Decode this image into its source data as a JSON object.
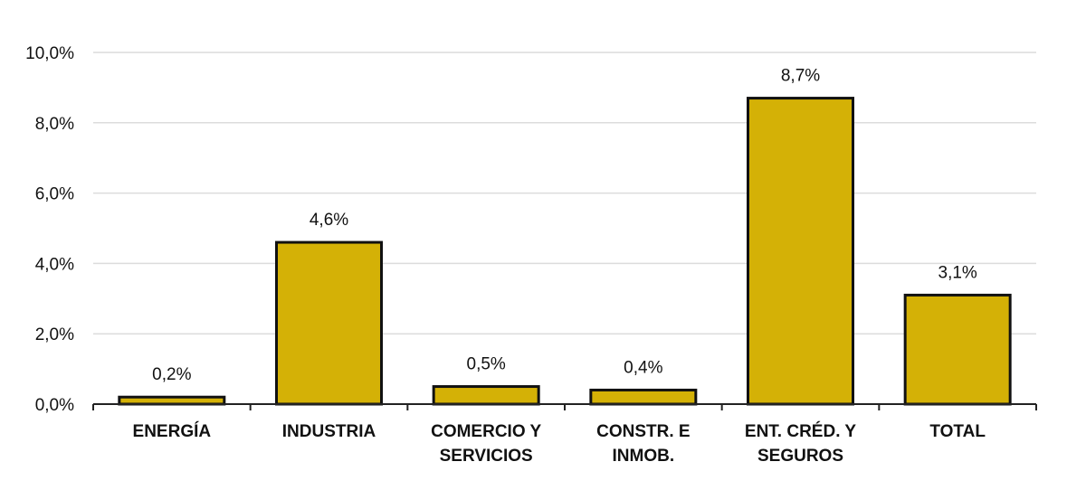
{
  "chart_data": {
    "type": "bar",
    "categories": [
      [
        "ENERGÍA"
      ],
      [
        "INDUSTRIA"
      ],
      [
        "COMERCIO Y",
        "SERVICIOS"
      ],
      [
        "CONSTR. E",
        "INMOB."
      ],
      [
        "ENT. CRÉD. Y",
        "SEGUROS"
      ],
      [
        "TOTAL"
      ]
    ],
    "values": [
      0.2,
      4.6,
      0.5,
      0.4,
      8.7,
      3.1
    ],
    "value_labels": [
      "0,2%",
      "4,6%",
      "0,5%",
      "0,4%",
      "8,7%",
      "3,1%"
    ],
    "y_ticks": [
      0,
      2,
      4,
      6,
      8,
      10
    ],
    "y_tick_labels": [
      "0,0%",
      "2,0%",
      "4,0%",
      "6,0%",
      "8,0%",
      "10,0%"
    ],
    "ylim": [
      0,
      10
    ],
    "grid": true,
    "legend": "none",
    "bar_color": "#d4b106",
    "title": "",
    "xlabel": "",
    "ylabel": ""
  }
}
